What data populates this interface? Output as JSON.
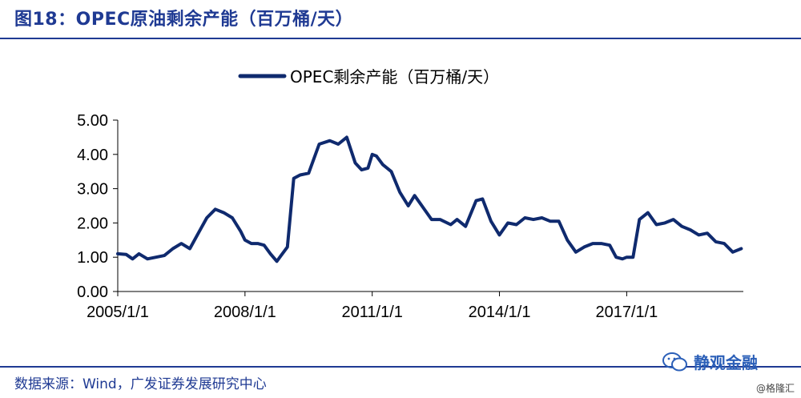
{
  "header": {
    "title": "图18：OPEC原油剩余产能（百万桶/天）"
  },
  "footer": {
    "source": "数据来源：Wind，广发证券发展研究中心"
  },
  "watermark": {
    "text": "静观金融",
    "icon": "wechat-icon",
    "small": "@格隆汇"
  },
  "colors": {
    "line": "#0f2a6e",
    "title": "#1f3a93"
  },
  "chart_data": {
    "type": "line",
    "title": "",
    "xlabel": "",
    "ylabel": "",
    "ylim": [
      0,
      5
    ],
    "yticks": [
      "0.00",
      "1.00",
      "2.00",
      "3.00",
      "4.00",
      "5.00"
    ],
    "xticks": [
      "2005/1/1",
      "2008/1/1",
      "2011/1/1",
      "2014/1/1",
      "2017/1/1"
    ],
    "legend": "top-center",
    "grid": false,
    "series": [
      {
        "name": "OPEC剩余产能（百万桶/天）",
        "x": [
          2005.0,
          2005.2,
          2005.35,
          2005.5,
          2005.7,
          2005.9,
          2006.1,
          2006.3,
          2006.5,
          2006.7,
          2006.9,
          2007.1,
          2007.3,
          2007.5,
          2007.7,
          2007.9,
          2008.0,
          2008.15,
          2008.3,
          2008.45,
          2008.6,
          2008.75,
          2008.85,
          2009.0,
          2009.15,
          2009.3,
          2009.5,
          2009.75,
          2010.0,
          2010.2,
          2010.4,
          2010.6,
          2010.75,
          2010.9,
          2011.0,
          2011.1,
          2011.25,
          2011.45,
          2011.65,
          2011.85,
          2012.0,
          2012.2,
          2012.4,
          2012.6,
          2012.85,
          2013.0,
          2013.2,
          2013.45,
          2013.6,
          2013.8,
          2014.0,
          2014.2,
          2014.4,
          2014.6,
          2014.8,
          2015.0,
          2015.2,
          2015.4,
          2015.6,
          2015.8,
          2016.0,
          2016.2,
          2016.4,
          2016.6,
          2016.75,
          2016.9,
          2017.0,
          2017.15,
          2017.3,
          2017.5,
          2017.7,
          2017.9,
          2018.1,
          2018.3,
          2018.5,
          2018.7,
          2018.9,
          2019.1,
          2019.3,
          2019.5,
          2019.7
        ],
        "y": [
          1.1,
          1.08,
          0.95,
          1.1,
          0.95,
          1.0,
          1.05,
          1.25,
          1.4,
          1.25,
          1.7,
          2.15,
          2.4,
          2.3,
          2.15,
          1.75,
          1.5,
          1.4,
          1.4,
          1.35,
          1.1,
          0.88,
          1.05,
          1.3,
          3.3,
          3.4,
          3.45,
          4.3,
          4.4,
          4.3,
          4.5,
          3.75,
          3.55,
          3.6,
          4.0,
          3.95,
          3.7,
          3.5,
          2.9,
          2.5,
          2.8,
          2.45,
          2.1,
          2.1,
          1.95,
          2.1,
          1.9,
          2.65,
          2.7,
          2.05,
          1.65,
          2.0,
          1.95,
          2.15,
          2.1,
          2.15,
          2.05,
          2.05,
          1.5,
          1.15,
          1.3,
          1.4,
          1.4,
          1.35,
          1.0,
          0.95,
          1.0,
          1.0,
          2.1,
          2.3,
          1.95,
          2.0,
          2.1,
          1.9,
          1.8,
          1.65,
          1.7,
          1.45,
          1.4,
          1.15,
          1.25
        ]
      }
    ]
  }
}
